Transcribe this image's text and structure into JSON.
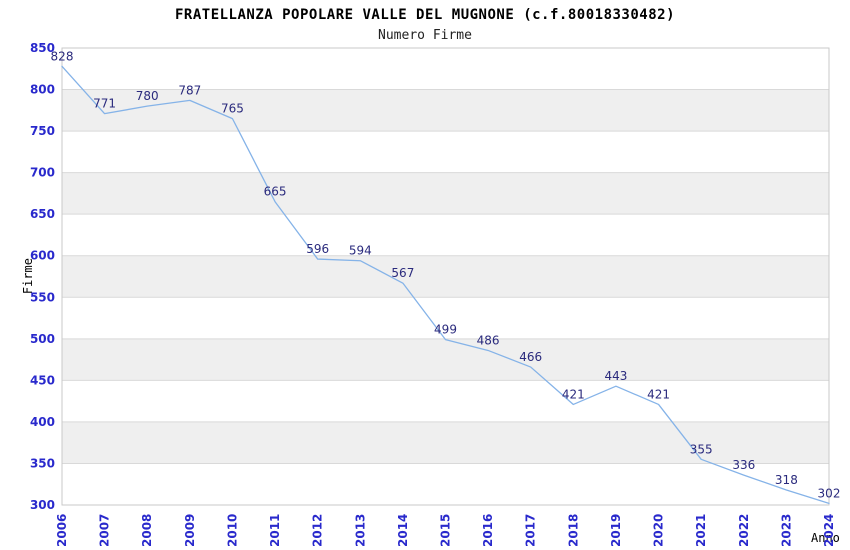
{
  "title": "FRATELLANZA POPOLARE VALLE DEL MUGNONE (c.f.80018330482)",
  "subtitle": "Numero Firme",
  "chart_data": {
    "type": "line",
    "title": "FRATELLANZA POPOLARE VALLE DEL MUGNONE (c.f.80018330482)",
    "subtitle": "Numero Firme",
    "xlabel": "Anno",
    "ylabel": "Firme",
    "x": [
      "2006",
      "2007",
      "2008",
      "2009",
      "2010",
      "2011",
      "2012",
      "2013",
      "2014",
      "2015",
      "2016",
      "2017",
      "2018",
      "2019",
      "2020",
      "2021",
      "2022",
      "2023",
      "2024"
    ],
    "values": [
      828,
      771,
      780,
      787,
      765,
      665,
      596,
      594,
      567,
      499,
      486,
      466,
      421,
      443,
      421,
      355,
      336,
      318,
      302
    ],
    "ylim": [
      300,
      850
    ],
    "ytick_step": 50,
    "yticks": [
      850,
      800,
      750,
      700,
      650,
      600,
      550,
      500,
      450,
      400,
      350,
      300
    ],
    "grid": true,
    "legend": false,
    "show_point_labels": true,
    "colors": {
      "line": "#85b3e8",
      "tick_label": "#2929cc",
      "data_label": "#2a2a7d",
      "band": "#efefef",
      "gridline": "#d9d9d9",
      "border": "#c9c9c9",
      "title": "#000000",
      "background": "#ffffff"
    }
  }
}
